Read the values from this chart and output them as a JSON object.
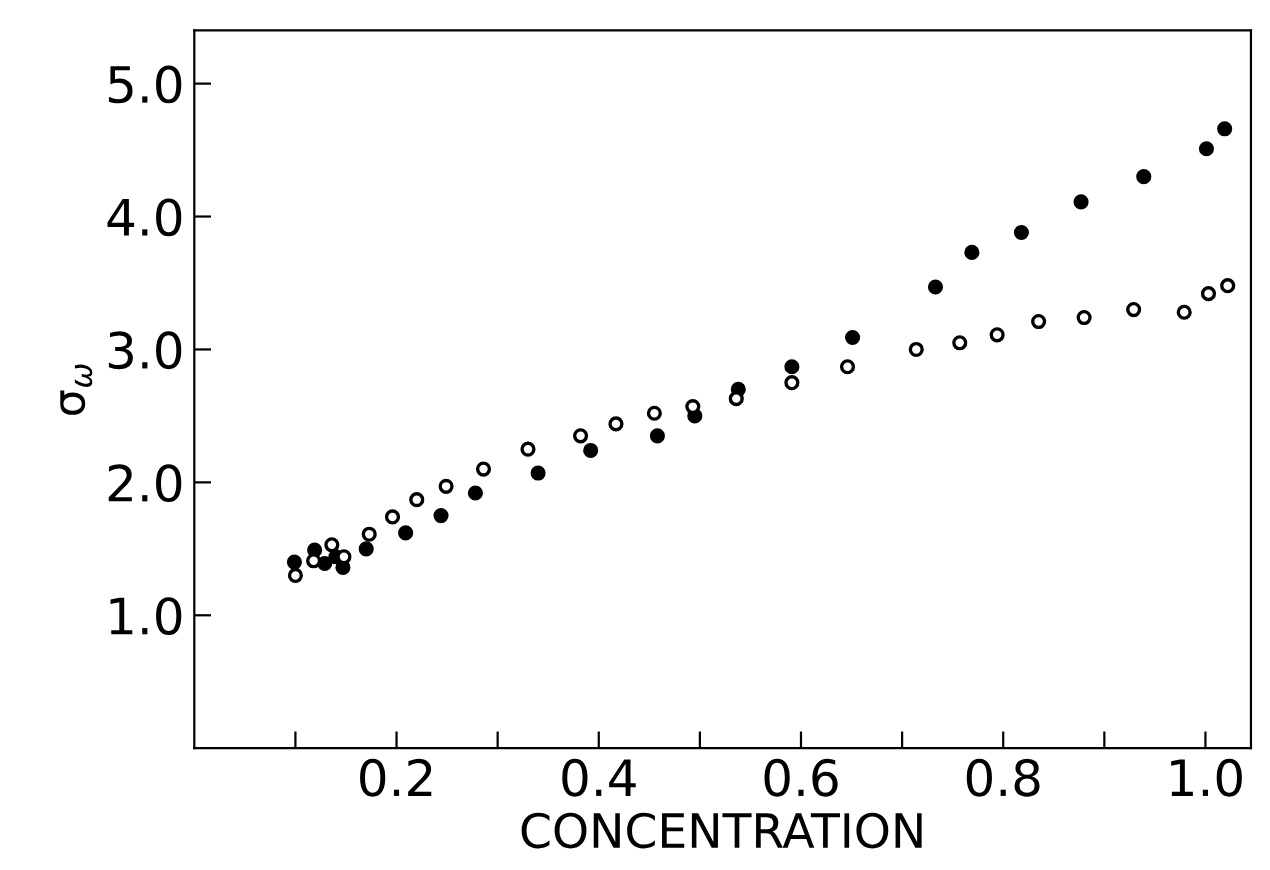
{
  "chart_data": {
    "type": "scatter",
    "xlabel": "CONCENTRATION",
    "ylabel": "σ$_{ω}$",
    "xlim": [
      0,
      1.045
    ],
    "ylim": [
      0,
      5.4
    ],
    "xticks": [
      {
        "value": 0.1,
        "label": null
      },
      {
        "value": 0.2,
        "label": "0.2"
      },
      {
        "value": 0.3,
        "label": null
      },
      {
        "value": 0.4,
        "label": "0.4"
      },
      {
        "value": 0.5,
        "label": null
      },
      {
        "value": 0.6,
        "label": "0.6"
      },
      {
        "value": 0.7,
        "label": null
      },
      {
        "value": 0.8,
        "label": "0.8"
      },
      {
        "value": 0.9,
        "label": null
      },
      {
        "value": 1.0,
        "label": "1.0"
      }
    ],
    "yticks": [
      {
        "value": 1,
        "label": "1.0"
      },
      {
        "value": 2,
        "label": "2.0"
      },
      {
        "value": 3,
        "label": "3.0"
      },
      {
        "value": 4,
        "label": "4.0"
      },
      {
        "value": 5,
        "label": "5.0"
      }
    ],
    "marker": "circle",
    "grid": false,
    "legend": false,
    "series": [
      {
        "color": "#000000",
        "x": [
          0.099,
          0.119,
          0.129,
          0.14,
          0.147,
          0.17,
          0.209,
          0.244,
          0.278,
          0.34,
          0.392,
          0.458,
          0.495,
          0.538,
          0.591,
          0.651,
          0.733,
          0.769,
          0.818,
          0.877,
          0.939,
          1.001,
          1.019
        ],
        "values": [
          1.4,
          1.49,
          1.39,
          1.44,
          1.36,
          1.5,
          1.62,
          1.75,
          1.92,
          2.07,
          2.24,
          2.35,
          2.5,
          2.7,
          2.87,
          3.09,
          3.47,
          3.73,
          3.88,
          4.11,
          4.3,
          4.51,
          4.66
        ]
      },
      {
        "color": "#ffffff",
        "x": [
          0.1,
          0.118,
          0.136,
          0.148,
          0.173,
          0.196,
          0.22,
          0.249,
          0.286,
          0.33,
          0.382,
          0.417,
          0.455,
          0.493,
          0.536,
          0.591,
          0.646,
          0.714,
          0.757,
          0.794,
          0.835,
          0.88,
          0.929,
          0.979,
          1.003,
          1.022
        ],
        "values": [
          1.3,
          1.41,
          1.53,
          1.44,
          1.61,
          1.74,
          1.87,
          1.97,
          2.1,
          2.25,
          2.35,
          2.44,
          2.52,
          2.57,
          2.63,
          2.75,
          2.87,
          3.0,
          3.05,
          3.11,
          3.21,
          3.24,
          3.3,
          3.28,
          3.42,
          3.48
        ]
      }
    ]
  }
}
